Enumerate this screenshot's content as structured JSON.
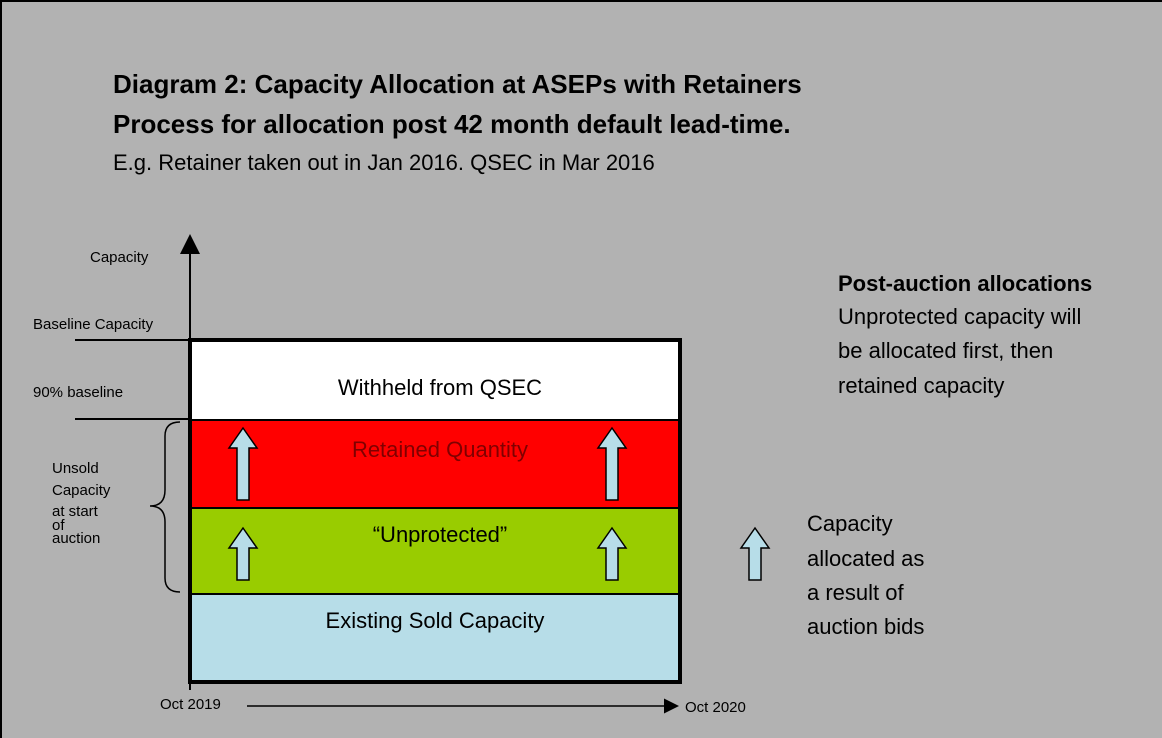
{
  "header": {
    "title": "Diagram 2: Capacity Allocation at ASEPs with Retainers",
    "subtitle": "Process for allocation post 42 month default lead-time.",
    "example": "E.g. Retainer taken out in Jan 2016. QSEC in Mar 2016"
  },
  "axis": {
    "y_label": "Capacity",
    "baseline": "Baseline Capacity",
    "ninety": "90% baseline",
    "x_start": "Oct 2019",
    "x_end": "Oct 2020"
  },
  "bands": [
    "Withheld from QSEC",
    "Retained Quantity",
    "“Unprotected”",
    "Existing Sold Capacity"
  ],
  "brace_label": [
    "Unsold",
    "Capacity",
    "at start",
    "of",
    "auction"
  ],
  "post_auction": {
    "heading": "Post-auction allocations",
    "lines": [
      "Unprotected capacity will",
      "be allocated first, then",
      "retained capacity"
    ]
  },
  "legend": [
    "Capacity",
    "allocated as",
    "a result of",
    "auction bids"
  ]
}
